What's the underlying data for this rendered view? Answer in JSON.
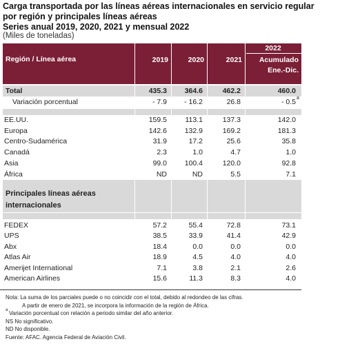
{
  "title": [
    "Carga transportada por las líneas aéreas internacionales en servicio regular",
    "por región y principales líneas aéreas"
  ],
  "subtitle": "Series anual 2019, 2020, 2021 y mensual 2022",
  "units": "(Miles de toneladas)",
  "table": {
    "group_header": "2022",
    "label_header": "Región / Línea aérea",
    "year_headers": [
      "2019",
      "2020",
      "2021"
    ],
    "acc_header": [
      "Acumulado",
      "Ene.-Dic."
    ],
    "total": {
      "label": "Total",
      "values": [
        "435.3",
        "364.6",
        "462.2",
        "460.0"
      ]
    },
    "variation": {
      "label": "Variación porcentual",
      "values": [
        "- 7.9",
        "- 16.2",
        "26.8",
        "- 0.5"
      ],
      "note_mark": "a"
    },
    "regions": [
      {
        "label": "EE.UU.",
        "values": [
          "159.5",
          "113.1",
          "137.3",
          "142.0"
        ]
      },
      {
        "label": "Europa",
        "values": [
          "142.6",
          "132.9",
          "169.2",
          "181.3"
        ]
      },
      {
        "label": "Centro-Sudamérica",
        "values": [
          "31.9",
          "17.2",
          "25.6",
          "35.8"
        ]
      },
      {
        "label": "Canadá",
        "values": [
          "2.3",
          "1.0",
          "4.7",
          "1.0"
        ]
      },
      {
        "label": "Asia",
        "values": [
          "99.0",
          "100.4",
          "120.0",
          "92.8"
        ]
      },
      {
        "label": "África",
        "values": [
          "ND",
          "ND",
          "5.5",
          "7.1"
        ]
      }
    ],
    "airlines_header": [
      "Principales líneas aéreas",
      "internacionales"
    ],
    "airlines": [
      {
        "label": "FEDEX",
        "values": [
          "57.2",
          "55.4",
          "72.8",
          "73.1"
        ]
      },
      {
        "label": "UPS",
        "values": [
          "38.5",
          "33.9",
          "41.4",
          "42.9"
        ]
      },
      {
        "label": "Abx",
        "values": [
          "18.4",
          "0.0",
          "0.0",
          "0.0"
        ]
      },
      {
        "label": "Atlas Air",
        "values": [
          "18.9",
          "4.5",
          "4.0",
          "4.0"
        ]
      },
      {
        "label": "Amerijet International",
        "values": [
          "7.1",
          "3.8",
          "2.1",
          "2.6"
        ]
      },
      {
        "label": "American Airlines",
        "values": [
          "15.6",
          "11.3",
          "8.3",
          "4.0"
        ]
      }
    ]
  },
  "notes": [
    "Nota: La suma de los parciales puede o no coincidir con el total, debido al redondeo de las cifras.",
    "A partir de enero de 2021, se incorpora la información de la región de África.",
    {
      "mark": "a",
      "text": "Variación porcentual con relación a periodo similar del año anterior."
    },
    "NS  No significativo.",
    "ND No disponible.",
    "Fuente: AFAC. Agencia Federal de Aviación Civil."
  ]
}
